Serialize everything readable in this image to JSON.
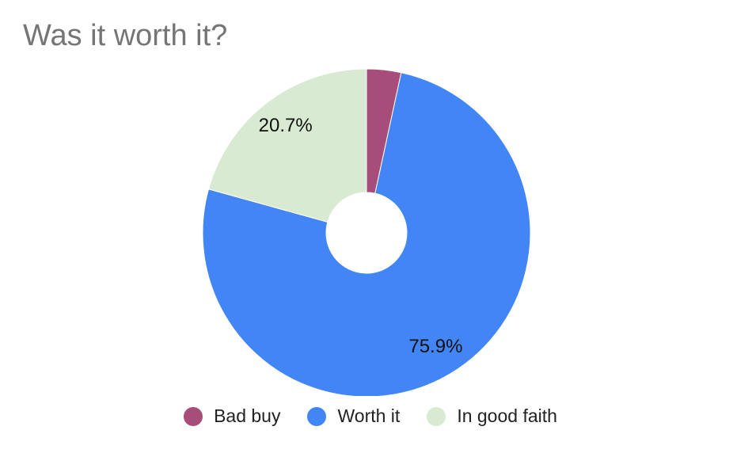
{
  "chart_data": {
    "type": "pie",
    "style": "donut",
    "title": "Was it worth it?",
    "slices": [
      {
        "name": "Bad buy",
        "value": 3.4,
        "color": "#a64d79",
        "label": ""
      },
      {
        "name": "Worth it",
        "value": 75.9,
        "color": "#4285f4",
        "label": "75.9%"
      },
      {
        "name": "In good faith",
        "value": 20.7,
        "color": "#d9ead3",
        "label": "20.7%"
      }
    ],
    "legend": {
      "position": "bottom"
    }
  }
}
